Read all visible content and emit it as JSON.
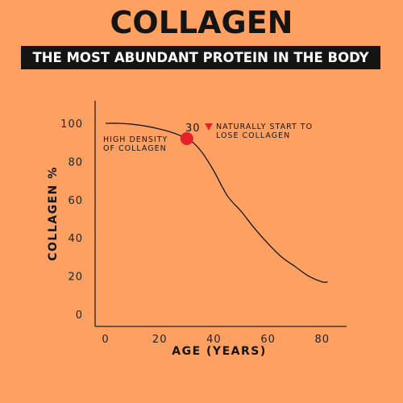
{
  "header": {
    "title": "COLLAGEN",
    "subtitle": "THE MOST ABUNDANT PROTEIN IN THE BODY"
  },
  "colors": {
    "background": "#FFA063",
    "text": "#141414",
    "marker": "#E8202A"
  },
  "chart_data": {
    "type": "line",
    "xlabel": "AGE (YEARS)",
    "ylabel": "COLLAGEN %",
    "xlim": [
      0,
      85
    ],
    "ylim": [
      0,
      100
    ],
    "x_ticks": [
      "0",
      "20",
      "40",
      "60",
      "80"
    ],
    "y_ticks": [
      "0",
      "20",
      "40",
      "60",
      "80",
      "100"
    ],
    "grid": false,
    "series": [
      {
        "x": [
          0,
          5,
          10,
          15,
          20,
          25,
          30,
          33,
          36,
          40,
          45,
          50,
          55,
          60,
          65,
          70,
          75,
          80,
          82
        ],
        "y": [
          100,
          100,
          99.5,
          98.5,
          97,
          95,
          92,
          89,
          84,
          75,
          62,
          54,
          45,
          37,
          30,
          25,
          20,
          17,
          17
        ]
      }
    ],
    "annotations": [
      {
        "x": 30,
        "y": 92,
        "label_num": "30",
        "label_line1": "NATURALLY START TO",
        "label_line2": "LOSE COLLAGEN"
      },
      {
        "label_line1": "HIGH DENSITY",
        "label_line2": "OF COLLAGEN"
      }
    ]
  }
}
